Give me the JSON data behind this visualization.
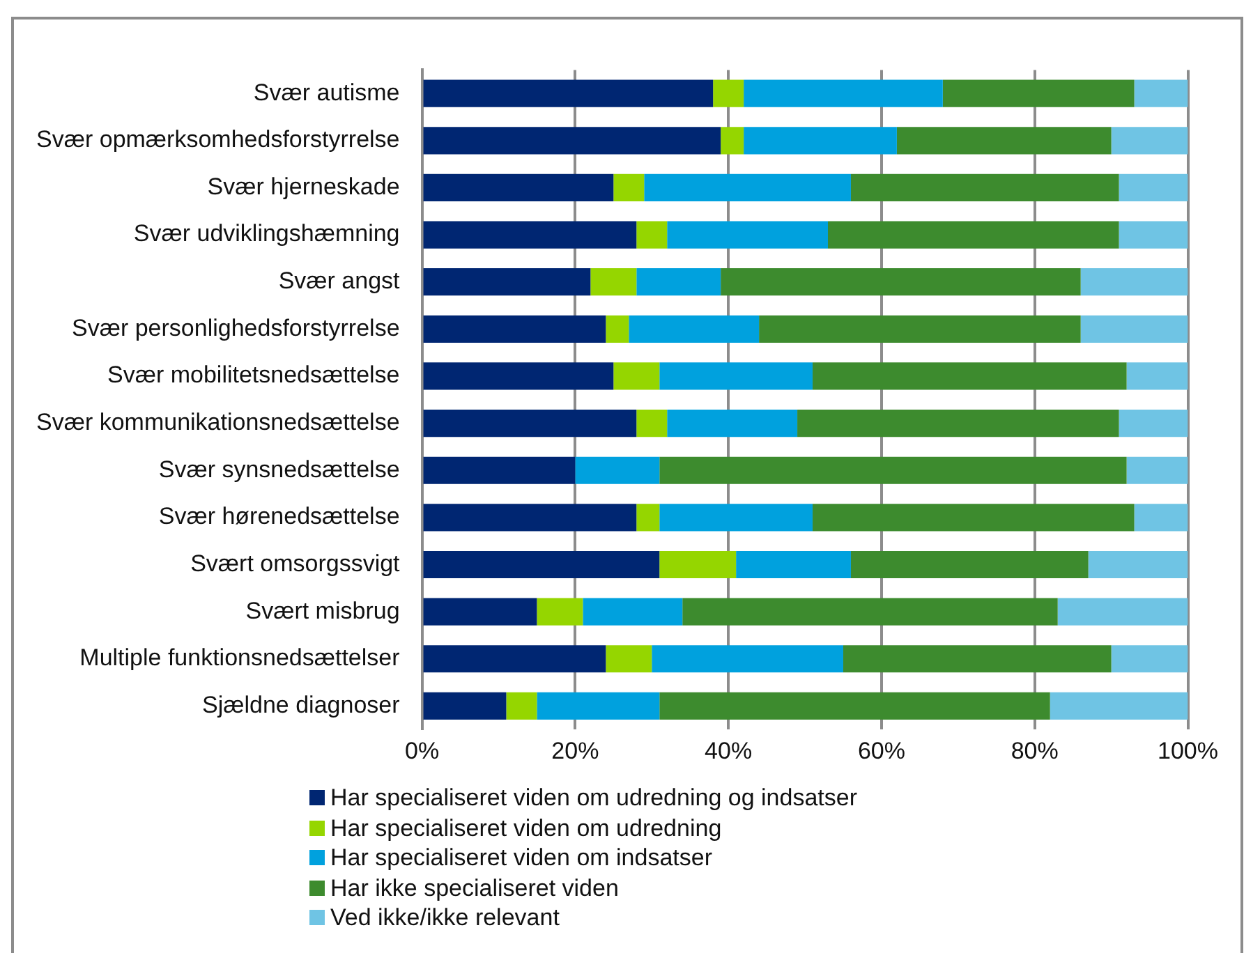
{
  "chart_data": {
    "type": "bar",
    "orientation": "horizontal",
    "stacked": true,
    "categories": [
      "Svær autisme",
      "Svær opmærksomhedsforstyrrelse",
      "Svær hjerneskade",
      "Svær udviklingshæmning",
      "Svær angst",
      "Svær personlighedsforstyrrelse",
      "Svær mobilitetsnedsættelse",
      "Svær kommunikationsnedsættelse",
      "Svær synsnedsættelse",
      "Svær hørenedsættelse",
      "Svært omsorgssvigt",
      "Svært misbrug",
      "Multiple funktionsnedsættelser",
      "Sjældne diagnoser"
    ],
    "series": [
      {
        "name": "Har specialiseret viden om udredning og indsatser",
        "color": "#002672",
        "values": [
          38,
          39,
          25,
          28,
          22,
          24,
          25,
          28,
          20,
          28,
          31,
          15,
          24,
          11
        ]
      },
      {
        "name": "Har specialiseret viden om udredning",
        "color": "#95d600",
        "values": [
          4,
          3,
          4,
          4,
          6,
          3,
          6,
          4,
          0,
          3,
          10,
          6,
          6,
          4
        ]
      },
      {
        "name": "Har specialiseret viden om indsatser",
        "color": "#00a1de",
        "values": [
          26,
          20,
          27,
          21,
          11,
          17,
          20,
          17,
          11,
          20,
          15,
          13,
          25,
          16
        ]
      },
      {
        "name": "Har ikke specialiseret viden",
        "color": "#3d8b2e",
        "values": [
          25,
          28,
          35,
          38,
          47,
          42,
          41,
          42,
          61,
          42,
          31,
          49,
          35,
          51
        ]
      },
      {
        "name": "Ved ikke/ikke relevant",
        "color": "#6fc4e4",
        "values": [
          7,
          10,
          9,
          9,
          14,
          14,
          8,
          9,
          8,
          7,
          13,
          17,
          10,
          18
        ]
      }
    ],
    "xlim": [
      0,
      100
    ],
    "xticks": [
      {
        "value": 0,
        "label": "0%"
      },
      {
        "value": 20,
        "label": "20%"
      },
      {
        "value": 40,
        "label": "40%"
      },
      {
        "value": 60,
        "label": "60%"
      },
      {
        "value": 80,
        "label": "80%"
      },
      {
        "value": 100,
        "label": "100%"
      }
    ],
    "grid": "x",
    "legend": "bottom"
  }
}
